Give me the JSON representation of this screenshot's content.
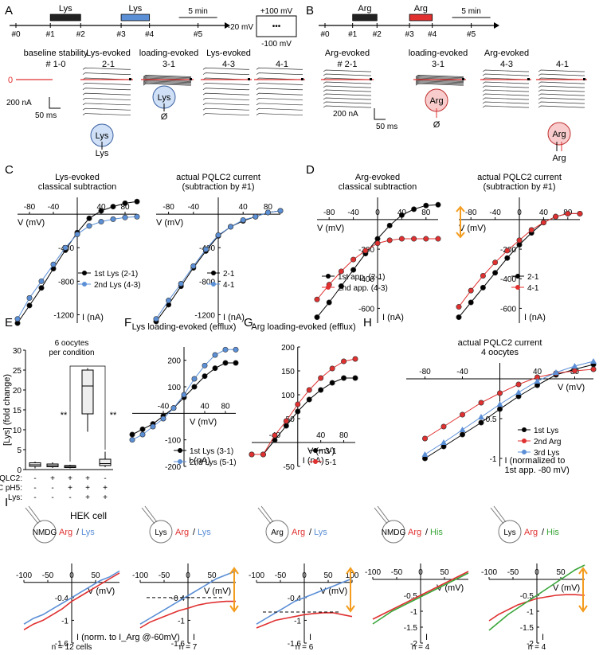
{
  "panel_labels": [
    "A",
    "B",
    "C",
    "D",
    "E",
    "F",
    "G",
    "H",
    "I"
  ],
  "panelA": {
    "timeline_ticks": [
      "#0",
      "#1",
      "#2",
      "#3",
      "#4",
      "#5"
    ],
    "applications": [
      {
        "label": "Lys",
        "color": "#222222"
      },
      {
        "label": "Lys",
        "color": "#5b8fd6"
      }
    ],
    "timescale": "5 min",
    "protocol": {
      "top": "+100 mV",
      "mid": "-20 mV",
      "bottom": "-100 mV",
      "dots": "•••"
    },
    "traces": [
      {
        "title": "baseline stability",
        "sub": "# 1-0"
      },
      {
        "title": "Lys-evoked",
        "sub": "2-1"
      },
      {
        "title": "loading-evoked",
        "sub": "3-1"
      },
      {
        "title": "Lys-evoked",
        "sub": "4-3"
      },
      {
        "title": "",
        "sub": "4-1"
      }
    ],
    "zero_label": "0",
    "scale_y": "200 nA",
    "scale_x": "50 ms",
    "cell_labels": [
      "Lys",
      "Lys",
      "Lys",
      "Ø"
    ]
  },
  "panelB": {
    "timeline_ticks": [
      "#0",
      "#1",
      "#2",
      "#3",
      "#4",
      "#5"
    ],
    "applications": [
      {
        "label": "Arg",
        "color": "#222222"
      },
      {
        "label": "Arg",
        "color": "#e03030"
      }
    ],
    "timescale": "5 min",
    "traces": [
      {
        "title": "Arg-evoked",
        "sub": "# 2-1"
      },
      {
        "title": "loading-evoked",
        "sub": "3-1"
      },
      {
        "title": "Arg-evoked",
        "sub": "4-3"
      },
      {
        "title": "",
        "sub": "4-1"
      }
    ],
    "scale_y": "200 nA",
    "scale_x": "50 ms",
    "cell_labels": [
      "Arg",
      "Ø",
      "Arg",
      "Arg"
    ]
  },
  "chart_data": [
    {
      "id": "C1",
      "type": "line",
      "title": "Lys-evoked\nclassical subtraction",
      "xlabel": "V (mV)",
      "ylabel": "I (nA)",
      "xlim": [
        -100,
        100
      ],
      "ylim": [
        -1300,
        200
      ],
      "xticks": [
        -80,
        -40,
        40,
        80
      ],
      "yticks": [
        -400,
        -800,
        -1200
      ],
      "x": [
        -100,
        -80,
        -60,
        -40,
        -20,
        0,
        20,
        40,
        60,
        80,
        100
      ],
      "series": [
        {
          "name": "1st Lys (2-1)",
          "color": "#000000",
          "values": [
            -1300,
            -1090,
            -880,
            -650,
            -430,
            -220,
            -50,
            40,
            90,
            130,
            150
          ]
        },
        {
          "name": "2nd Lys (4-3)",
          "color": "#5b8fd6",
          "values": [
            -1250,
            -1000,
            -800,
            -600,
            -400,
            -240,
            -140,
            -90,
            -60,
            -40,
            -30
          ]
        }
      ]
    },
    {
      "id": "C2",
      "type": "line",
      "title": "actual PQLC2 current\n(subtraction by #1)",
      "xlabel": "V (mV)",
      "ylabel": "I (nA)",
      "xlim": [
        -100,
        100
      ],
      "ylim": [
        -1300,
        200
      ],
      "xticks": [
        -80,
        -40,
        40,
        80
      ],
      "yticks": [
        -400,
        -800,
        -1200
      ],
      "x": [
        -100,
        -80,
        -60,
        -40,
        -20,
        0,
        20,
        40,
        60,
        80,
        100
      ],
      "series": [
        {
          "name": "2-1",
          "color": "#000000",
          "values": [
            -1280,
            -1080,
            -860,
            -640,
            -440,
            -260,
            -150,
            -80,
            -30,
            20,
            40
          ]
        },
        {
          "name": "4-1",
          "color": "#5b8fd6",
          "values": [
            -1250,
            -1030,
            -830,
            -620,
            -420,
            -250,
            -150,
            -70,
            -30,
            20,
            40
          ]
        }
      ]
    },
    {
      "id": "D1",
      "type": "line",
      "title": "Arg-evoked\nclassical subtraction",
      "xlabel": "V (mV)",
      "ylabel": "I (nA)",
      "xlim": [
        -100,
        100
      ],
      "ylim": [
        -700,
        150
      ],
      "xticks": [
        -80,
        -40,
        0,
        40,
        80
      ],
      "yticks": [
        -200,
        -400,
        -600
      ],
      "x": [
        -100,
        -80,
        -60,
        -40,
        -20,
        0,
        20,
        40,
        60,
        80,
        100
      ],
      "series": [
        {
          "name": "1st app. (2-1)",
          "color": "#000000",
          "values": [
            -660,
            -560,
            -450,
            -340,
            -230,
            -130,
            -40,
            30,
            70,
            95,
            100
          ]
        },
        {
          "name": "2nd app. (4-3)",
          "color": "#e03030",
          "values": [
            -540,
            -440,
            -350,
            -270,
            -210,
            -160,
            -140,
            -130,
            -130,
            -130,
            -130
          ]
        }
      ]
    },
    {
      "id": "D2",
      "type": "line",
      "title": "actual PQLC2 current\n(subtraction by #1)",
      "xlabel": "V (mV)",
      "ylabel": "I (nA)",
      "xlim": [
        -100,
        100
      ],
      "ylim": [
        -700,
        150
      ],
      "xticks": [
        -80,
        -40,
        0,
        40,
        80
      ],
      "yticks": [
        -200,
        -400,
        -600
      ],
      "x": [
        -100,
        -80,
        -60,
        -40,
        -20,
        0,
        20,
        40,
        60,
        80,
        100
      ],
      "series": [
        {
          "name": "2-1",
          "color": "#000000",
          "values": [
            -660,
            -560,
            -460,
            -360,
            -260,
            -170,
            -90,
            -20,
            20,
            40,
            40
          ]
        },
        {
          "name": "4-1",
          "color": "#e03030",
          "values": [
            -590,
            -480,
            -380,
            -290,
            -210,
            -140,
            -70,
            -20,
            20,
            40,
            40
          ]
        }
      ]
    },
    {
      "id": "E",
      "type": "box",
      "title": "6 oocytes\nper condition",
      "ylabel": "[Lys] (fold change)",
      "ylim": [
        0,
        30
      ],
      "yticks": [
        0,
        5,
        10,
        15,
        20,
        25,
        30
      ],
      "row_labels": [
        "PQLC2:",
        "TEVC pH5:",
        "Lys:"
      ],
      "conditions": [
        {
          "PQLC2": "-",
          "TEVC pH5": "-",
          "Lys": "-",
          "median": 1.2,
          "q1": 0.8,
          "q3": 1.7,
          "min": 0.3,
          "max": 2.0
        },
        {
          "PQLC2": "+",
          "TEVC pH5": "-",
          "Lys": "-",
          "median": 1.0,
          "q1": 0.7,
          "q3": 1.4,
          "min": 0.4,
          "max": 1.8
        },
        {
          "PQLC2": "+",
          "TEVC pH5": "+",
          "Lys": "-",
          "median": 0.8,
          "q1": 0.5,
          "q3": 1.0,
          "min": 0.3,
          "max": 1.2
        },
        {
          "PQLC2": "+",
          "TEVC pH5": "+",
          "Lys": "+",
          "median": 21,
          "q1": 14,
          "q3": 25,
          "min": 9.5,
          "max": 25.5
        },
        {
          "PQLC2": "-",
          "TEVC pH5": "+",
          "Lys": "+",
          "median": 1.5,
          "q1": 1.0,
          "q3": 2.6,
          "min": 0.6,
          "max": 4.5
        }
      ],
      "significance": [
        "**",
        "**"
      ]
    },
    {
      "id": "F",
      "type": "line",
      "title": "Lys loading-evoked (efflux)",
      "xlabel": "V (mV)",
      "ylabel": "I (nA)",
      "xlim": [
        -100,
        100
      ],
      "ylim": [
        -200,
        250
      ],
      "xticks": [
        -40,
        40,
        80
      ],
      "yticks": [
        200,
        100,
        -100,
        -200
      ],
      "x": [
        -100,
        -80,
        -60,
        -40,
        -20,
        0,
        20,
        40,
        60,
        80,
        100
      ],
      "series": [
        {
          "name": "1st Lys (3-1)",
          "color": "#000000",
          "values": [
            -80,
            -60,
            -40,
            -10,
            20,
            60,
            100,
            140,
            170,
            190,
            190
          ]
        },
        {
          "name": "2nd Lys (5-1)",
          "color": "#5b8fd6",
          "values": [
            -100,
            -80,
            -50,
            -20,
            20,
            70,
            130,
            180,
            220,
            240,
            240
          ]
        }
      ]
    },
    {
      "id": "G",
      "type": "line",
      "title": "Arg loading-evoked (efflux)",
      "xlabel": "V (mV)",
      "ylabel": "I (nA)",
      "xlim": [
        -80,
        100
      ],
      "ylim": [
        -50,
        200
      ],
      "xticks": [
        -40,
        40,
        80
      ],
      "yticks": [
        200,
        150,
        100,
        50,
        -50
      ],
      "x": [
        -80,
        -60,
        -40,
        -20,
        0,
        20,
        40,
        60,
        80,
        100
      ],
      "series": [
        {
          "name": "3-1",
          "color": "#000000",
          "values": [
            -25,
            -25,
            5,
            35,
            65,
            90,
            110,
            125,
            135,
            135
          ]
        },
        {
          "name": "5-1",
          "color": "#e03030",
          "values": [
            -25,
            -25,
            15,
            45,
            80,
            110,
            135,
            155,
            170,
            175
          ]
        }
      ]
    },
    {
      "id": "H",
      "type": "line",
      "title": "actual PQLC2 current\n4 oocytes",
      "xlabel": "V (mV)",
      "ylabel": "I (normalized to\n1st app. -80 mV)",
      "xlim": [
        -100,
        100
      ],
      "ylim": [
        -1.1,
        0.2
      ],
      "xticks": [
        -80,
        -40,
        40,
        80
      ],
      "yticks": [
        -0.5,
        -1
      ],
      "x": [
        -80,
        -60,
        -40,
        -20,
        0,
        20,
        40,
        60,
        80,
        100
      ],
      "series": [
        {
          "name": "1st Lys",
          "color": "#000000",
          "values": [
            -1.0,
            -0.85,
            -0.7,
            -0.55,
            -0.38,
            -0.22,
            -0.08,
            0.05,
            0.12,
            0.18
          ]
        },
        {
          "name": "2nd Arg",
          "color": "#e03030",
          "values": [
            -0.75,
            -0.6,
            -0.45,
            -0.3,
            -0.18,
            -0.07,
            0.02,
            0.07,
            0.1,
            0.12
          ]
        },
        {
          "name": "3rd Lys",
          "color": "#5b8fd6",
          "values": [
            -0.95,
            -0.8,
            -0.64,
            -0.48,
            -0.32,
            -0.17,
            -0.03,
            0.08,
            0.16,
            0.22
          ]
        }
      ]
    },
    {
      "id": "I1",
      "type": "line",
      "title": "HEK cell",
      "cell": "NMDG",
      "legend": [
        "Arg",
        "Lys"
      ],
      "xlabel": "V (mV)",
      "ylabel": "I (norm. to I_Arg @-60mV)",
      "xlim": [
        -100,
        100
      ],
      "ylim": [
        -1.6,
        0.5
      ],
      "xticks": [
        -100,
        -50,
        0,
        50
      ],
      "yticks": [
        -0.4,
        -1.0,
        -1.6
      ],
      "x": [
        -100,
        -80,
        -60,
        -40,
        -20,
        0,
        20,
        40,
        60,
        80,
        100
      ],
      "series": [
        {
          "name": "Arg",
          "color": "#e03030",
          "values": [
            -1.25,
            -1.1,
            -1.0,
            -0.85,
            -0.7,
            -0.5,
            -0.35,
            -0.2,
            -0.05,
            0.1,
            0.25
          ]
        },
        {
          "name": "Lys",
          "color": "#5b8fd6",
          "values": [
            -1.1,
            -0.95,
            -0.85,
            -0.7,
            -0.55,
            -0.4,
            -0.25,
            -0.1,
            0.05,
            0.15,
            0.3
          ]
        }
      ],
      "n": "n = 12 cells"
    },
    {
      "id": "I2",
      "type": "line",
      "cell": "Lys",
      "legend": [
        "Arg",
        "Lys"
      ],
      "xlabel": "V (mV)",
      "ylabel": "I",
      "xlim": [
        -100,
        100
      ],
      "ylim": [
        -1.6,
        0.5
      ],
      "xticks": [
        -100,
        -50,
        0,
        50
      ],
      "yticks": [
        -0.4,
        -1.0,
        -1.6
      ],
      "x": [
        -100,
        -80,
        -60,
        -40,
        -20,
        0,
        20,
        40,
        60,
        80,
        100
      ],
      "series": [
        {
          "name": "Arg",
          "color": "#e03030",
          "values": [
            -1.2,
            -1.05,
            -0.95,
            -0.85,
            -0.75,
            -0.68,
            -0.6,
            -0.55,
            -0.52,
            -0.5,
            -0.5
          ]
        },
        {
          "name": "Lys",
          "color": "#5b8fd6",
          "values": [
            -1.1,
            -0.95,
            -0.8,
            -0.65,
            -0.5,
            -0.35,
            -0.2,
            -0.05,
            0.1,
            0.2,
            0.3
          ]
        }
      ],
      "n": "n = 7"
    },
    {
      "id": "I3",
      "type": "line",
      "cell": "Arg",
      "legend": [
        "Arg",
        "Lys"
      ],
      "xlabel": "V (mV)",
      "ylabel": "I",
      "xlim": [
        -100,
        100
      ],
      "ylim": [
        -1.6,
        0.5
      ],
      "xticks": [
        -100,
        -50,
        0,
        50,
        100
      ],
      "yticks": [
        -0.4,
        -1.0,
        -1.6
      ],
      "x": [
        -100,
        -80,
        -60,
        -40,
        -20,
        0,
        20,
        40,
        60,
        80,
        100
      ],
      "series": [
        {
          "name": "Arg",
          "color": "#e03030",
          "values": [
            -1.2,
            -1.1,
            -1.0,
            -0.95,
            -0.9,
            -0.85,
            -0.82,
            -0.8,
            -0.8,
            -0.85,
            -0.9
          ]
        },
        {
          "name": "Lys",
          "color": "#5b8fd6",
          "values": [
            -1.1,
            -0.95,
            -0.8,
            -0.65,
            -0.5,
            -0.4,
            -0.3,
            -0.2,
            -0.1,
            0.0,
            0.1
          ]
        }
      ],
      "n": "n = 6"
    },
    {
      "id": "I4",
      "type": "line",
      "cell": "NMDG",
      "legend": [
        "Arg",
        "His"
      ],
      "xlabel": "V (mV)",
      "ylabel": "I",
      "xlim": [
        -100,
        100
      ],
      "ylim": [
        -2.0,
        0.5
      ],
      "xticks": [
        -100,
        -50,
        0,
        50
      ],
      "yticks": [
        -0.5,
        -1.0,
        -1.5,
        -2.0
      ],
      "x": [
        -100,
        -80,
        -60,
        -40,
        -20,
        0,
        20,
        40,
        60,
        80,
        100
      ],
      "series": [
        {
          "name": "Arg",
          "color": "#e03030",
          "values": [
            -1.25,
            -1.1,
            -0.95,
            -0.8,
            -0.65,
            -0.5,
            -0.35,
            -0.2,
            -0.05,
            0.1,
            0.25
          ]
        },
        {
          "name": "His",
          "color": "#3aa63a",
          "values": [
            -1.4,
            -1.2,
            -1.0,
            -0.85,
            -0.7,
            -0.55,
            -0.4,
            -0.25,
            -0.1,
            0.05,
            0.2
          ]
        }
      ],
      "n": "n = 4"
    },
    {
      "id": "I5",
      "type": "line",
      "cell": "Lys",
      "legend": [
        "Arg",
        "His"
      ],
      "xlabel": "V (mV)",
      "ylabel": "I",
      "xlim": [
        -100,
        100
      ],
      "ylim": [
        -2.0,
        0.5
      ],
      "xticks": [
        -100,
        -50,
        0,
        50
      ],
      "yticks": [
        -0.5,
        -1.0,
        -1.5,
        -2.0
      ],
      "x": [
        -100,
        -80,
        -60,
        -40,
        -20,
        0,
        20,
        40,
        60,
        80,
        100
      ],
      "series": [
        {
          "name": "Arg",
          "color": "#e03030",
          "values": [
            -1.3,
            -1.1,
            -0.95,
            -0.8,
            -0.7,
            -0.6,
            -0.55,
            -0.5,
            -0.48,
            -0.48,
            -0.5
          ]
        },
        {
          "name": "His",
          "color": "#3aa63a",
          "values": [
            -1.6,
            -1.35,
            -1.1,
            -0.9,
            -0.7,
            -0.5,
            -0.3,
            -0.1,
            0.1,
            0.3,
            0.45
          ]
        }
      ],
      "n": "n = 4"
    }
  ]
}
